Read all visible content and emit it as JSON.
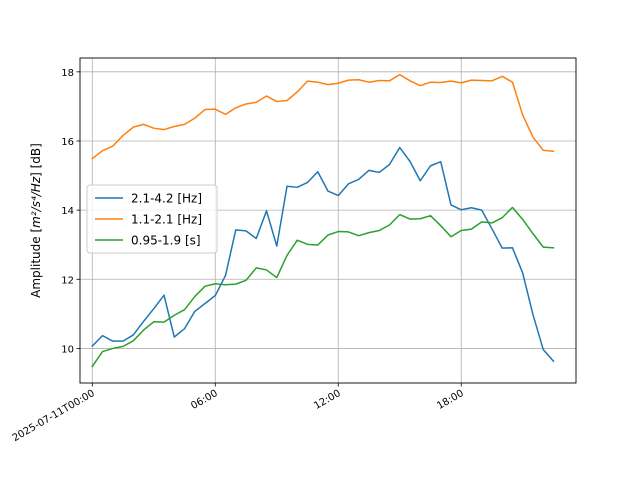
{
  "chart_data": {
    "type": "line",
    "title": "",
    "xlabel": "",
    "ylabel_base": "Amplitude [",
    "ylabel_math": "m²/s⁴/Hz",
    "ylabel_unit": "] [dB]",
    "ylim": [
      9.0,
      18.4
    ],
    "xlim_hours": [
      -0.6,
      23.6
    ],
    "x_start_hour": 0,
    "x_step_hours": 0.5,
    "grid": true,
    "legend_position": "center-left",
    "yticks": [
      10,
      12,
      14,
      16,
      18
    ],
    "xticks": [
      {
        "hour": 0,
        "label": "2025-07-11T00:00"
      },
      {
        "hour": 6,
        "label": "06:00"
      },
      {
        "hour": 12,
        "label": "12:00"
      },
      {
        "hour": 18,
        "label": "18:00"
      }
    ],
    "series": [
      {
        "name": "2.1-4.2 [Hz]",
        "color": "#1f77b4",
        "values": [
          10.07,
          10.37,
          10.21,
          10.21,
          10.39,
          10.78,
          11.15,
          11.54,
          10.33,
          10.57,
          11.07,
          11.3,
          11.53,
          12.11,
          13.43,
          13.4,
          13.18,
          13.98,
          12.96,
          14.69,
          14.66,
          14.8,
          15.11,
          14.55,
          14.42,
          14.76,
          14.89,
          15.15,
          15.09,
          15.32,
          15.81,
          15.41,
          14.85,
          15.28,
          15.4,
          14.15,
          14.01,
          14.07,
          14.0,
          13.46,
          12.9,
          12.91,
          12.18,
          10.98,
          9.97,
          9.63
        ]
      },
      {
        "name": "1.1-2.1 [Hz]",
        "color": "#ff7f0e",
        "values": [
          15.49,
          15.72,
          15.85,
          16.16,
          16.4,
          16.48,
          16.37,
          16.33,
          16.42,
          16.48,
          16.66,
          16.91,
          16.92,
          16.77,
          16.96,
          17.07,
          17.12,
          17.3,
          17.14,
          17.17,
          17.42,
          17.73,
          17.7,
          17.63,
          17.67,
          17.76,
          17.77,
          17.7,
          17.75,
          17.74,
          17.92,
          17.74,
          17.6,
          17.7,
          17.69,
          17.73,
          17.68,
          17.76,
          17.75,
          17.74,
          17.87,
          17.7,
          16.75,
          16.11,
          15.73,
          15.7
        ]
      },
      {
        "name": "0.95-1.9 [s]",
        "color": "#2ca02c",
        "values": [
          9.48,
          9.91,
          10.0,
          10.06,
          10.22,
          10.53,
          10.77,
          10.76,
          10.96,
          11.12,
          11.5,
          11.8,
          11.87,
          11.84,
          11.86,
          11.97,
          12.33,
          12.27,
          12.05,
          12.69,
          13.13,
          13.01,
          12.99,
          13.28,
          13.38,
          13.37,
          13.26,
          13.35,
          13.41,
          13.57,
          13.87,
          13.74,
          13.75,
          13.84,
          13.55,
          13.23,
          13.41,
          13.45,
          13.66,
          13.63,
          13.78,
          14.08,
          13.73,
          13.32,
          12.93,
          12.91
        ]
      }
    ]
  }
}
